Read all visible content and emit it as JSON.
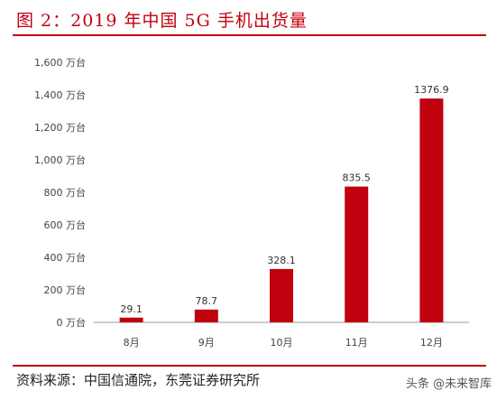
{
  "header": {
    "title": "图 2：2019 年中国 5G 手机出货量"
  },
  "chart_data": {
    "type": "bar",
    "categories": [
      "8月",
      "9月",
      "10月",
      "11月",
      "12月"
    ],
    "values": [
      29.1,
      78.7,
      328.1,
      835.5,
      1376.9
    ],
    "data_labels": [
      "29.1",
      "78.7",
      "328.1",
      "835.5",
      "1376.9"
    ],
    "ylim": [
      0,
      1600
    ],
    "yticks": [
      0,
      200,
      400,
      600,
      800,
      1000,
      1200,
      1400,
      1600
    ],
    "ytick_labels": [
      "0 万台",
      "200 万台",
      "400 万台",
      "600 万台",
      "800 万台",
      "1,000 万台",
      "1,200 万台",
      "1,400 万台",
      "1,600 万台"
    ],
    "bar_color": "#c0000f",
    "grid": false
  },
  "footer": {
    "source": "资料来源：中国信通院，东莞证券研究所",
    "watermark": "头条 @未来智库"
  }
}
